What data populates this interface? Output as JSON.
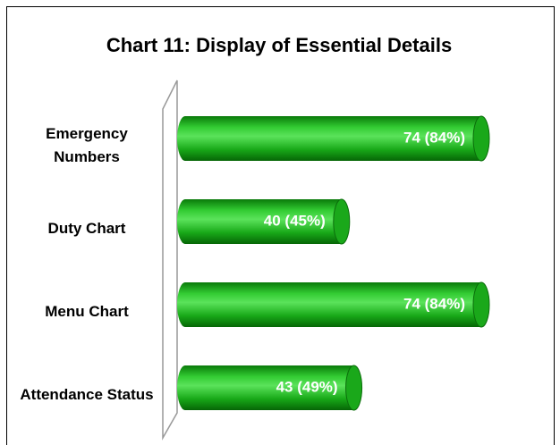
{
  "chart_data": {
    "type": "bar",
    "orientation": "horizontal",
    "title": "Chart 11: Display of Essential Details",
    "categories": [
      "Emergency Numbers",
      "Duty Chart",
      "Menu Chart",
      "Attendance Status"
    ],
    "values": [
      74,
      40,
      74,
      43
    ],
    "value_labels": [
      "74 (84%)",
      "40 (45%)",
      "74 (84%)",
      "43 (49%)"
    ],
    "color": "#1aa81a"
  }
}
